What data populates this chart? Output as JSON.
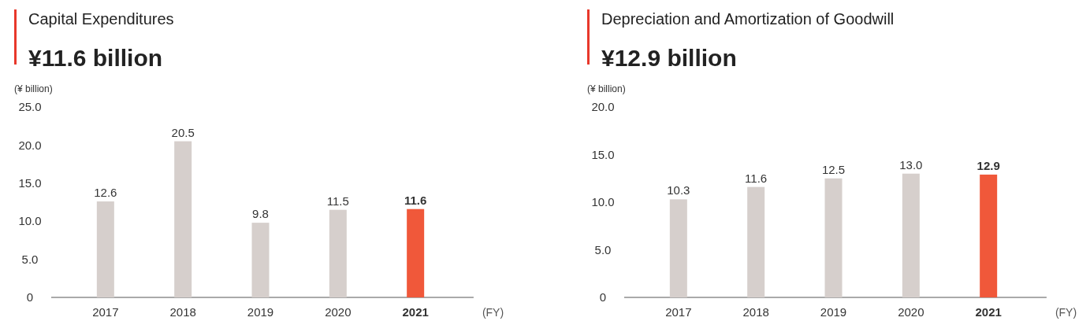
{
  "chart_data": [
    {
      "type": "bar",
      "title": "Capital Expenditures",
      "subtitle": "¥11.6 billion",
      "ylabel": "(¥ billion)",
      "xlabel": "(FY)",
      "categories": [
        "2017",
        "2018",
        "2019",
        "2020",
        "2021"
      ],
      "values": [
        12.6,
        20.5,
        9.8,
        11.5,
        11.6
      ],
      "colors": [
        "#d6cfcc",
        "#d6cfcc",
        "#d6cfcc",
        "#d6cfcc",
        "#f0583a"
      ],
      "data_labels": true,
      "ylim": [
        0,
        25
      ],
      "yticks": [
        {
          "value": 0,
          "label": "0"
        },
        {
          "value": 5,
          "label": "5.0"
        },
        {
          "value": 10,
          "label": "10.0"
        },
        {
          "value": 15,
          "label": "15.0"
        },
        {
          "value": 20,
          "label": "20.0"
        },
        {
          "value": 25,
          "label": "25.0"
        }
      ]
    },
    {
      "type": "bar",
      "title": "Depreciation and Amortization of Goodwill",
      "subtitle": "¥12.9 billion",
      "ylabel": "(¥ billion)",
      "xlabel": "(FY)",
      "categories": [
        "2017",
        "2018",
        "2019",
        "2020",
        "2021"
      ],
      "values": [
        10.3,
        11.6,
        12.5,
        13.0,
        12.9
      ],
      "value_labels": [
        "10.3",
        "11.6",
        "12.5",
        "13.0",
        "12.9"
      ],
      "colors": [
        "#d6cfcc",
        "#d6cfcc",
        "#d6cfcc",
        "#d6cfcc",
        "#f0583a"
      ],
      "data_labels": true,
      "ylim": [
        0,
        20
      ],
      "yticks": [
        {
          "value": 0,
          "label": "0"
        },
        {
          "value": 5,
          "label": "5.0"
        },
        {
          "value": 10,
          "label": "10.0"
        },
        {
          "value": 15,
          "label": "15.0"
        },
        {
          "value": 20,
          "label": "20.0"
        }
      ]
    }
  ]
}
